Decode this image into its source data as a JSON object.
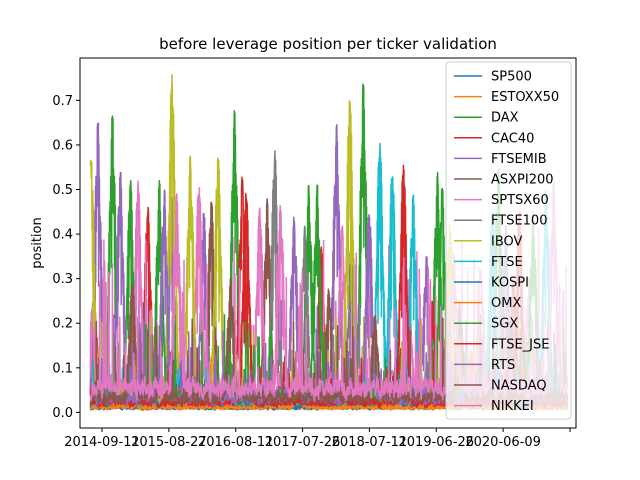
{
  "chart_data": {
    "type": "line",
    "title": "before leverage position per ticker validation",
    "xlabel": "",
    "ylabel": "position",
    "x_range": [
      "2014-09-11",
      "2021-08-01"
    ],
    "ylim": [
      -0.035,
      0.795
    ],
    "x_ticks": [
      "2014-09-11",
      "2015-08-27",
      "2016-08-11",
      "2017-07-26",
      "2018-07-11",
      "2019-06-26",
      "2020-06-09",
      ""
    ],
    "y_ticks": [
      "0.0",
      "0.1",
      "0.2",
      "0.3",
      "0.4",
      "0.5",
      "0.6",
      "0.7"
    ],
    "grid": false,
    "legend_position": "top-right",
    "series": [
      {
        "name": "SP500",
        "color": "#1f77b4",
        "base": 0.01,
        "peaks": [
          {
            "x": "2015-03-01",
            "y": 0.08
          },
          {
            "x": "2018-02-01",
            "y": 0.12
          },
          {
            "x": "2020-03-15",
            "y": 0.1
          }
        ]
      },
      {
        "name": "ESTOXX50",
        "color": "#ff7f0e",
        "base": 0.01,
        "peaks": [
          {
            "x": "2015-01-20",
            "y": 0.1
          },
          {
            "x": "2016-06-20",
            "y": 0.15
          },
          {
            "x": "2020-03-10",
            "y": 0.14
          }
        ]
      },
      {
        "name": "DAX",
        "color": "#2ca02c",
        "base": 0.03,
        "peaks": [
          {
            "x": "2015-01-05",
            "y": 0.67
          },
          {
            "x": "2015-04-10",
            "y": 0.52
          },
          {
            "x": "2016-10-10",
            "y": 0.68
          },
          {
            "x": "2017-11-05",
            "y": 0.51
          },
          {
            "x": "2018-08-20",
            "y": 0.74
          },
          {
            "x": "2019-09-15",
            "y": 0.54
          },
          {
            "x": "2020-08-01",
            "y": 0.55
          }
        ]
      },
      {
        "name": "CAC40",
        "color": "#d62728",
        "base": 0.02,
        "peaks": [
          {
            "x": "2014-10-05",
            "y": 0.2
          },
          {
            "x": "2015-07-10",
            "y": 0.46
          },
          {
            "x": "2016-11-20",
            "y": 0.53
          },
          {
            "x": "2018-01-10",
            "y": 0.38
          },
          {
            "x": "2019-08-20",
            "y": 0.25
          },
          {
            "x": "2020-10-20",
            "y": 0.3
          }
        ]
      },
      {
        "name": "FTSEMIB",
        "color": "#9467bd",
        "base": 0.04,
        "peaks": [
          {
            "x": "2014-10-20",
            "y": 0.65
          },
          {
            "x": "2015-02-15",
            "y": 0.55
          },
          {
            "x": "2015-11-10",
            "y": 0.5
          },
          {
            "x": "2016-05-01",
            "y": 0.45
          },
          {
            "x": "2018-04-01",
            "y": 0.65
          },
          {
            "x": "2019-07-20",
            "y": 0.35
          }
        ]
      },
      {
        "name": "ASXPI200",
        "color": "#8c564b",
        "base": 0.02,
        "peaks": [
          {
            "x": "2015-06-20",
            "y": 0.25
          },
          {
            "x": "2016-06-10",
            "y": 0.48
          },
          {
            "x": "2017-04-01",
            "y": 0.48
          },
          {
            "x": "2018-02-20",
            "y": 0.28
          },
          {
            "x": "2019-11-10",
            "y": 0.25
          }
        ]
      },
      {
        "name": "SPTSX60",
        "color": "#e377c2",
        "base": 0.06,
        "peaks": [
          {
            "x": "2014-09-25",
            "y": 0.26
          },
          {
            "x": "2015-05-20",
            "y": 0.52
          },
          {
            "x": "2016-04-05",
            "y": 0.52
          },
          {
            "x": "2017-02-20",
            "y": 0.46
          },
          {
            "x": "2018-05-01",
            "y": 0.42
          },
          {
            "x": "2019-04-15",
            "y": 0.3
          },
          {
            "x": "2020-05-01",
            "y": 0.32
          },
          {
            "x": "2021-01-10",
            "y": 0.3
          }
        ]
      },
      {
        "name": "FTSE100",
        "color": "#7f7f7f",
        "base": 0.02,
        "peaks": [
          {
            "x": "2017-05-10",
            "y": 0.59
          },
          {
            "x": "2017-10-15",
            "y": 0.42
          },
          {
            "x": "2018-06-20",
            "y": 0.4
          }
        ]
      },
      {
        "name": "IBOV",
        "color": "#bcbd22",
        "base": 0.03,
        "peaks": [
          {
            "x": "2014-09-15",
            "y": 0.57
          },
          {
            "x": "2015-11-15",
            "y": 0.76
          },
          {
            "x": "2016-02-20",
            "y": 0.58
          },
          {
            "x": "2016-07-15",
            "y": 0.58
          },
          {
            "x": "2018-06-10",
            "y": 0.71
          },
          {
            "x": "2019-11-20",
            "y": 0.42
          }
        ]
      },
      {
        "name": "FTSE",
        "color": "#17becf",
        "base": 0.02,
        "peaks": [
          {
            "x": "2018-11-15",
            "y": 0.61
          },
          {
            "x": "2019-01-20",
            "y": 0.55
          },
          {
            "x": "2019-05-10",
            "y": 0.49
          },
          {
            "x": "2020-07-01",
            "y": 0.45
          },
          {
            "x": "2021-04-10",
            "y": 0.5
          }
        ]
      },
      {
        "name": "KOSPI",
        "color": "#1f77b4",
        "base": 0.01,
        "peaks": [
          {
            "x": "2016-01-10",
            "y": 0.1
          },
          {
            "x": "2019-02-10",
            "y": 0.12
          }
        ]
      },
      {
        "name": "OMX",
        "color": "#ff7f0e",
        "base": 0.01,
        "peaks": [
          {
            "x": "2017-09-10",
            "y": 0.08
          },
          {
            "x": "2020-12-10",
            "y": 0.1
          }
        ]
      },
      {
        "name": "SGX",
        "color": "#2ca02c",
        "base": 0.03,
        "peaks": [
          {
            "x": "2015-09-10",
            "y": 0.52
          },
          {
            "x": "2017-12-20",
            "y": 0.51
          },
          {
            "x": "2019-10-10",
            "y": 0.51
          },
          {
            "x": "2021-02-01",
            "y": 0.45
          }
        ]
      },
      {
        "name": "FTSE_JSE",
        "color": "#d62728",
        "base": 0.02,
        "peaks": [
          {
            "x": "2016-12-10",
            "y": 0.5
          },
          {
            "x": "2019-03-20",
            "y": 0.56
          },
          {
            "x": "2020-11-20",
            "y": 0.45
          }
        ]
      },
      {
        "name": "RTS",
        "color": "#9467bd",
        "base": 0.03,
        "peaks": [
          {
            "x": "2015-10-05",
            "y": 0.5
          },
          {
            "x": "2017-08-20",
            "y": 0.44
          },
          {
            "x": "2018-09-20",
            "y": 0.46
          },
          {
            "x": "2020-09-10",
            "y": 0.42
          }
        ]
      },
      {
        "name": "NASDAQ",
        "color": "#8c564b",
        "base": 0.03,
        "peaks": [
          {
            "x": "2015-04-20",
            "y": 0.29
          },
          {
            "x": "2016-09-20",
            "y": 0.3
          },
          {
            "x": "2018-10-20",
            "y": 0.22
          },
          {
            "x": "2020-01-10",
            "y": 0.25
          }
        ]
      },
      {
        "name": "NIKKEI",
        "color": "#e377c2",
        "base": 0.05,
        "peaks": [
          {
            "x": "2015-12-10",
            "y": 0.49
          },
          {
            "x": "2017-06-10",
            "y": 0.47
          },
          {
            "x": "2019-12-10",
            "y": 0.36
          },
          {
            "x": "2021-05-20",
            "y": 0.52
          }
        ]
      }
    ]
  }
}
